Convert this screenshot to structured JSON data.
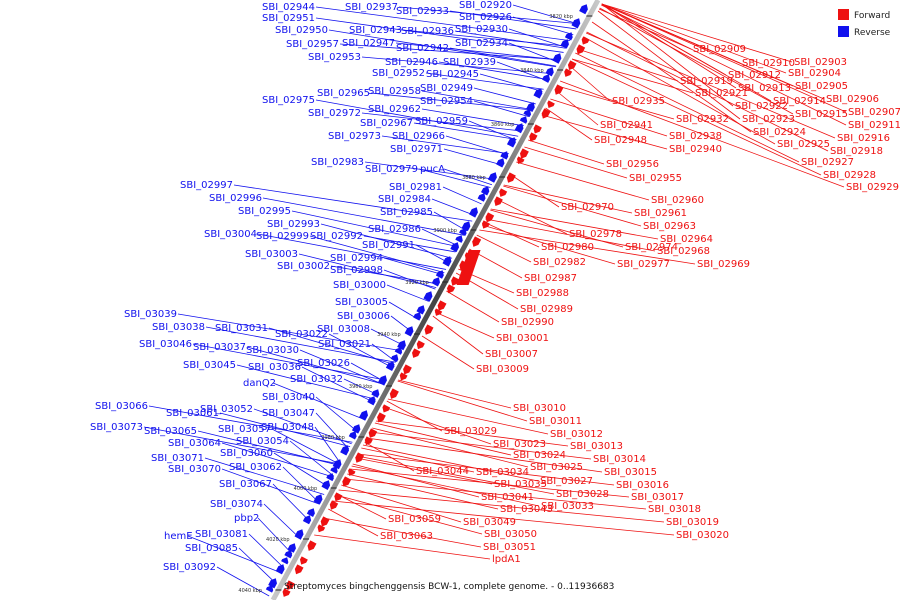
{
  "legend": {
    "forward_label": "Forward",
    "reverse_label": "Reverse",
    "forward_color": "#ee1111",
    "reverse_color": "#1111ee"
  },
  "caption": "Streptomyces bingchenggensis BCW-1, complete genome. - 0..11936683",
  "ticks": [
    "3820 kbp",
    "3840 kbp",
    "3860 kbp",
    "3880 kbp",
    "3900 kbp",
    "3920 kbp",
    "3940 kbp",
    "3960 kbp",
    "3980 kbp",
    "4000 kbp",
    "4020 kbp",
    "4040 kbp"
  ],
  "reverse_genes": [
    "SBI_02944",
    "SBI_02937",
    "SBI_02933",
    "SBI_02920",
    "SBI_02951",
    "SBI_02926",
    "SBI_02950",
    "SBI_02943",
    "SBI_02936",
    "SBI_02930",
    "SBI_02957",
    "SBI_02947",
    "SBI_02942",
    "SBI_02934",
    "SBI_02953",
    "SBI_02946",
    "SBI_02939",
    "SBI_02952",
    "SBI_02945",
    "SBI_02958",
    "SBI_02949",
    "SBI_02965",
    "SBI_02975",
    "SBI_02954",
    "SBI_02962",
    "SBI_02972",
    "SBI_02959",
    "SBI_02967",
    "SBI_02973",
    "SBI_02966",
    "SBI_02971",
    "SBI_02983",
    "SBI_02979",
    "pucA",
    "SBI_02981",
    "SBI_02997",
    "SBI_02996",
    "SBI_02984",
    "SBI_02995",
    "SBI_02985",
    "SBI_02993",
    "SBI_03004",
    "SBI_02999",
    "SBI_02992",
    "SBI_02986",
    "SBI_02991",
    "SBI_03003",
    "SBI_02994",
    "SBI_03002",
    "SBI_02998",
    "SBI_03000",
    "SBI_03005",
    "SBI_03039",
    "SBI_03006",
    "SBI_03038",
    "SBI_03031",
    "SBI_03022",
    "SBI_03008",
    "SBI_03046",
    "SBI_03037",
    "SBI_03030",
    "SBI_03021",
    "SBI_03026",
    "SBI_03045",
    "SBI_03036",
    "danQ2",
    "SBI_03032",
    "SBI_03040",
    "SBI_03066",
    "SBI_03061",
    "SBI_03052",
    "SBI_03047",
    "SBI_03073",
    "SBI_03065",
    "SBI_03057",
    "SBI_03048",
    "SBI_03064",
    "SBI_03054",
    "SBI_03071",
    "SBI_03060",
    "SBI_03070",
    "SBI_03062",
    "SBI_03067",
    "SBI_03074",
    "pbp2",
    "hemE",
    "SBI_03081",
    "SBI_03085",
    "SBI_03092"
  ],
  "forward_genes": [
    "SBI_02909",
    "SBI_02910",
    "SBI_02903",
    "SBI_02912",
    "SBI_02904",
    "SBI_02919",
    "SBI_02913",
    "SBI_02905",
    "SBI_02921",
    "SBI_02914",
    "SBI_02906",
    "SBI_02935",
    "SBI_02922",
    "SBI_02915",
    "SBI_02907",
    "SBI_02932",
    "SBI_02923",
    "SBI_02911",
    "SBI_02941",
    "SBI_02924",
    "SBI_02916",
    "SBI_02938",
    "SBI_02948",
    "SBI_02925",
    "SBI_02918",
    "SBI_02940",
    "SBI_02927",
    "SBI_02956",
    "SBI_02928",
    "SBI_02955",
    "SBI_02929",
    "SBI_02960",
    "SBI_02970",
    "SBI_02961",
    "SBI_02963",
    "SBI_02978",
    "SBI_02964",
    "SBI_02980",
    "SBI_02974",
    "SBI_02968",
    "SBI_02982",
    "SBI_02977",
    "SBI_02969",
    "SBI_02987",
    "SBI_02988",
    "SBI_02989",
    "SBI_02990",
    "SBI_03001",
    "SBI_03007",
    "SBI_03009",
    "SBI_03010",
    "SBI_03011",
    "SBI_03012",
    "SBI_03029",
    "SBI_03013",
    "SBI_03023",
    "SBI_03024",
    "SBI_03014",
    "SBI_03025",
    "SBI_03015",
    "SBI_03044",
    "SBI_03034",
    "SBI_03027",
    "SBI_03016",
    "SBI_03035",
    "SBI_03028",
    "SBI_03041",
    "SBI_03017",
    "SBI_03033",
    "SBI_03043",
    "SBI_03018",
    "SBI_03059",
    "SBI_03049",
    "SBI_03019",
    "SBI_03063",
    "SBI_03050",
    "SBI_03020",
    "SBI_03051",
    "lpdA1"
  ]
}
